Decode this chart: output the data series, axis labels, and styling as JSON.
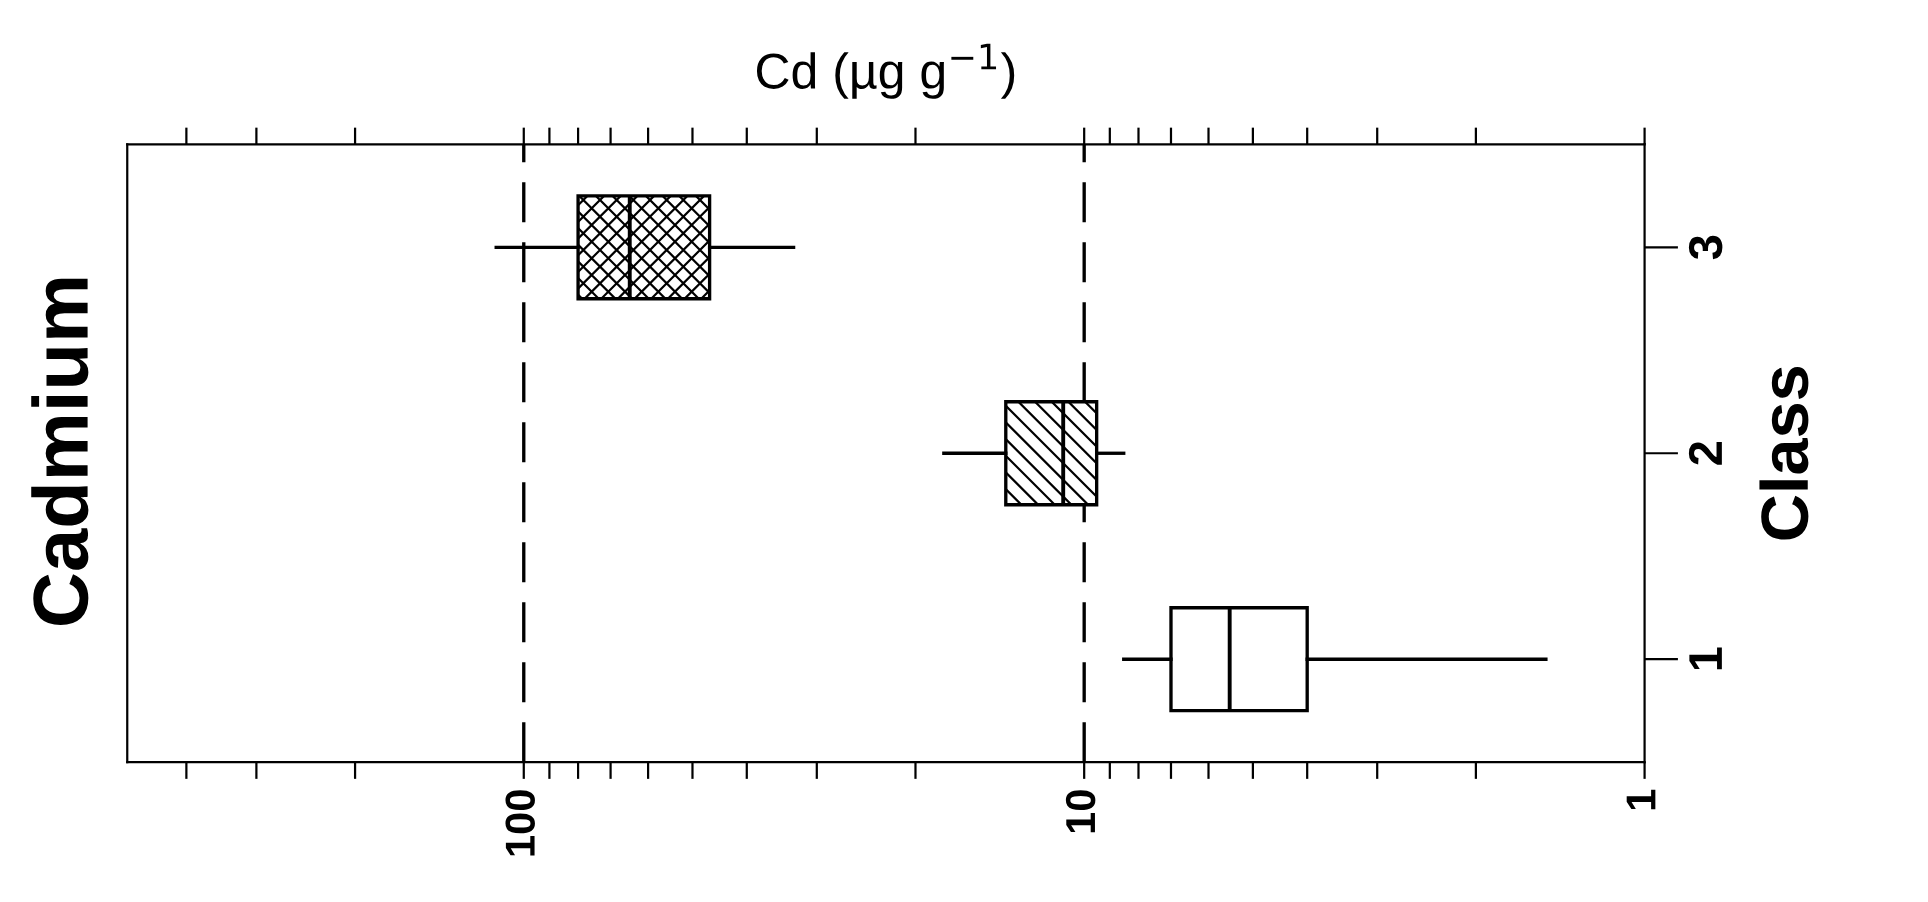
{
  "chart_data": {
    "type": "box",
    "orientation": "horizontal",
    "title": "Cadmium",
    "xlabel": "Cd (µg g$^{−1}$)",
    "ylabel": "Class",
    "categories": [
      "3",
      "2",
      "1"
    ],
    "boxes": [
      {
        "low": 33,
        "q1": 46.6,
        "median": 64.7,
        "q3": 80,
        "high": 112
      },
      {
        "low": 8.5,
        "q1": 9.5,
        "median": 10.9,
        "q3": 13.8,
        "high": 17.8
      },
      {
        "low": 1.5,
        "q1": 4.0,
        "median": 5.5,
        "q3": 7.0,
        "high": 8.5
      }
    ],
    "log": "x",
    "xlim": [
      510,
      1
    ],
    "xticks": [
      {
        "value": 400,
        "label": null
      },
      {
        "value": 300,
        "label": null
      },
      {
        "value": 200,
        "label": null
      },
      100,
      {
        "value": 90,
        "label": null
      },
      {
        "value": 80,
        "label": null
      },
      {
        "value": 70,
        "label": null
      },
      {
        "value": 60,
        "label": null
      },
      {
        "value": 50,
        "label": null
      },
      {
        "value": 40,
        "label": null
      },
      {
        "value": 30,
        "label": null
      },
      {
        "value": 20,
        "label": null
      },
      10,
      {
        "value": 9,
        "label": null
      },
      {
        "value": 8,
        "label": null
      },
      {
        "value": 7,
        "label": null
      },
      {
        "value": 6,
        "label": null
      },
      {
        "value": 5,
        "label": null
      },
      {
        "value": 4,
        "label": null
      },
      {
        "value": 3,
        "label": null
      },
      {
        "value": 2,
        "label": null
      },
      1
    ],
    "ref_lines": [
      {
        "axis": "x",
        "value": 100,
        "line_style": "dashed",
        "color": "#000000"
      },
      {
        "axis": "x",
        "value": 10,
        "line_style": "dashed",
        "color": "#000000"
      }
    ],
    "grid": false,
    "legend": false
  }
}
